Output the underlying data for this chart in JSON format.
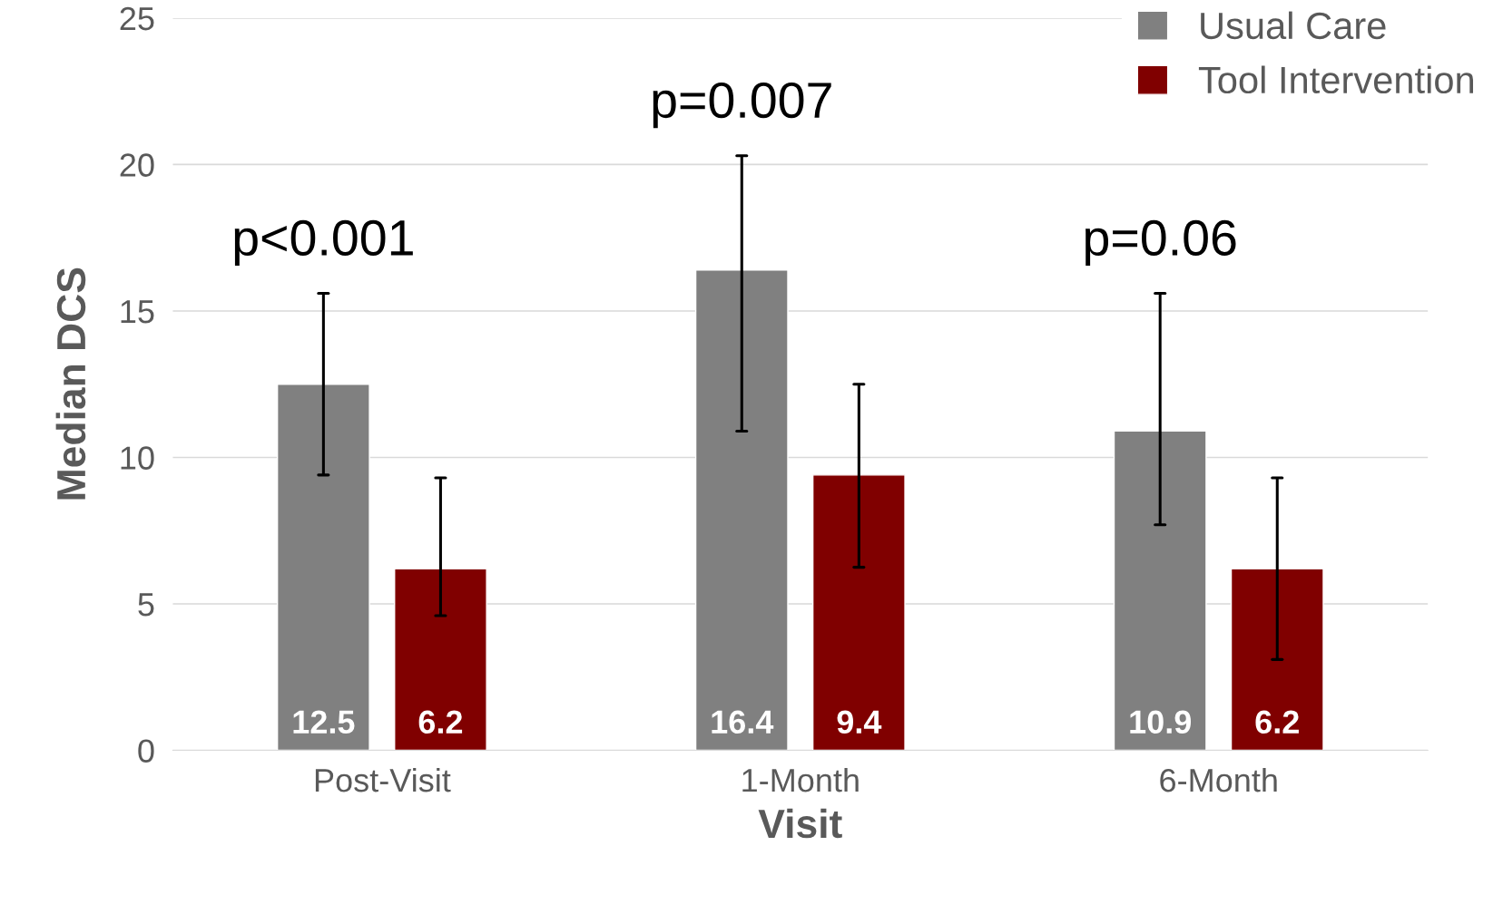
{
  "chart_data": {
    "type": "bar",
    "xlabel": "Visit",
    "ylabel": "Median DCS",
    "categories": [
      "Post-Visit",
      "1-Month",
      "6-Month"
    ],
    "series": [
      {
        "name": "Usual Care",
        "color": "#808080",
        "values": [
          12.5,
          16.4,
          10.9
        ],
        "errors": [
          [
            9.4,
            15.6
          ],
          [
            10.9,
            20.3
          ],
          [
            7.7,
            15.6
          ]
        ]
      },
      {
        "name": "Tool Intervention",
        "color": "#800000",
        "values": [
          6.2,
          9.4,
          6.2
        ],
        "errors": [
          [
            4.6,
            9.3
          ],
          [
            6.25,
            12.5
          ],
          [
            3.1,
            9.3
          ]
        ]
      }
    ],
    "ylim": [
      0,
      25
    ],
    "yticks": [
      0,
      5,
      10,
      15,
      20,
      25
    ],
    "grid": "y",
    "legend": "top right",
    "data_labels": true,
    "annotations": [
      "p<0.001",
      "p=0.007",
      "p=0.06"
    ]
  }
}
